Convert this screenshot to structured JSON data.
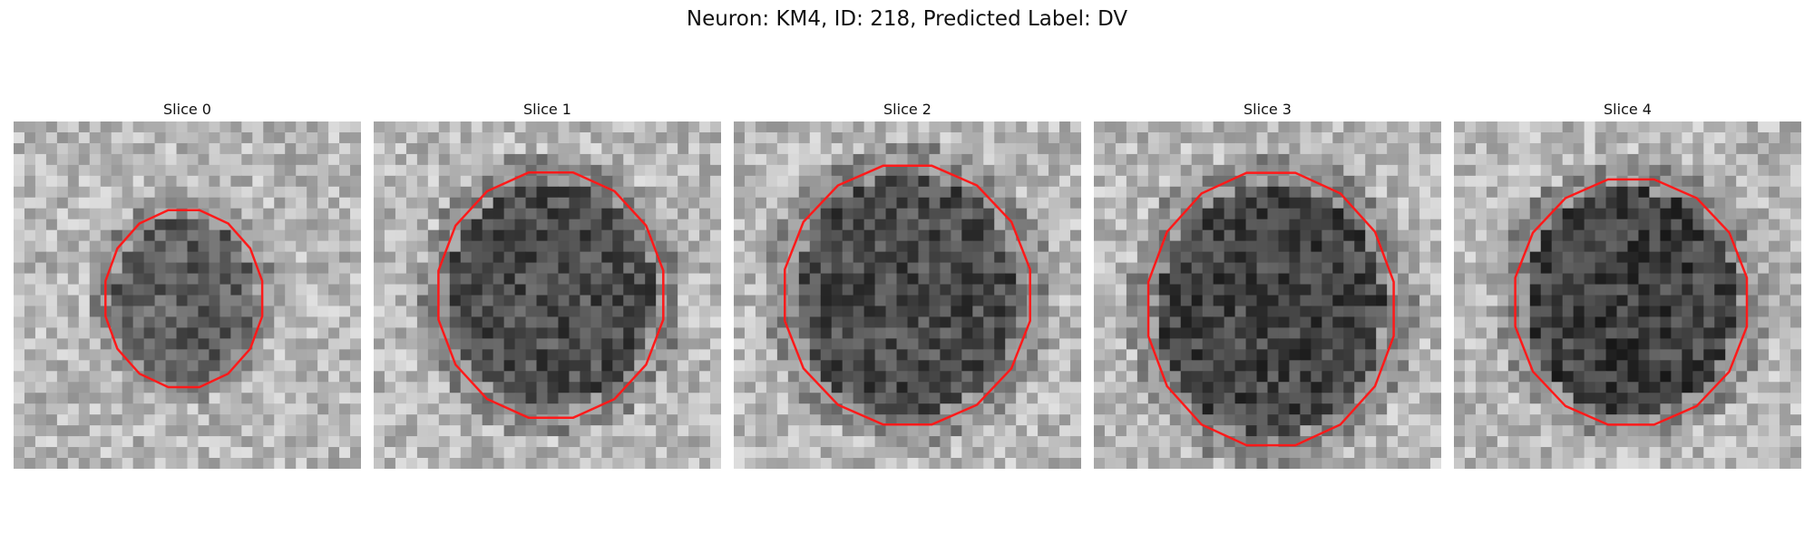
{
  "figure": {
    "title": "Neuron: KM4, ID: 218, Predicted Label: DV"
  },
  "contour_color": "#ff1a1a",
  "panels": [
    {
      "title": "Slice 0",
      "center": [
        0.49,
        0.51
      ],
      "radius": [
        0.23,
        0.26
      ],
      "darkness": 0.55,
      "seed": 11
    },
    {
      "title": "Slice 1",
      "center": [
        0.51,
        0.5
      ],
      "radius": [
        0.33,
        0.36
      ],
      "darkness": 0.7,
      "seed": 23
    },
    {
      "title": "Slice 2",
      "center": [
        0.5,
        0.5
      ],
      "radius": [
        0.36,
        0.38
      ],
      "darkness": 0.72,
      "seed": 37
    },
    {
      "title": "Slice 3",
      "center": [
        0.51,
        0.54
      ],
      "radius": [
        0.36,
        0.4
      ],
      "darkness": 0.78,
      "seed": 53
    },
    {
      "title": "Slice 4",
      "center": [
        0.51,
        0.52
      ],
      "radius": [
        0.34,
        0.36
      ],
      "darkness": 0.82,
      "seed": 71
    }
  ]
}
